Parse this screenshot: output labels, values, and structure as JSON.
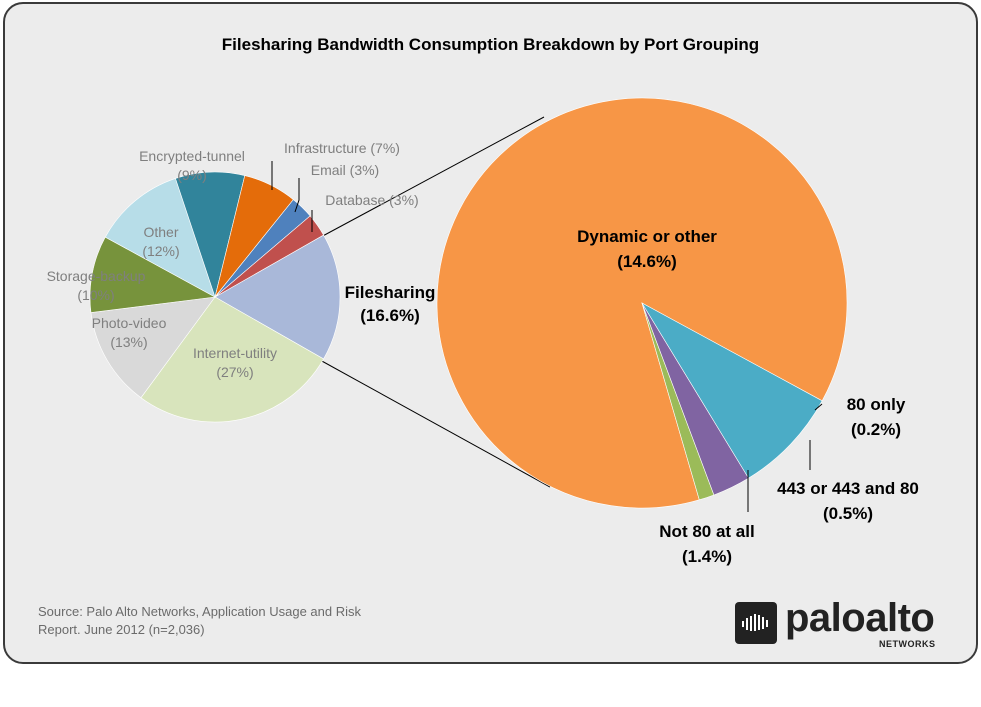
{
  "title": "Filesharing Bandwidth Consumption Breakdown by Port Grouping",
  "source": "Source: Palo Alto Networks, Application Usage and Risk Report. June 2012 (n=2,036)",
  "logo": {
    "name": "paloalto",
    "sub": "NETWORKS"
  },
  "colors": {
    "frame_bg": "#ececec",
    "frame_border": "#3a3a3a"
  },
  "chart_data": [
    {
      "type": "pie",
      "title": "",
      "slices": [
        {
          "label": "Filesharing",
          "pct_text": "(16.6%)",
          "value": 16.6,
          "color": "#a9b8d9"
        },
        {
          "label": "Internet-utility",
          "pct_text": "(27%)",
          "value": 27,
          "color": "#d8e4bc"
        },
        {
          "label": "Photo-video",
          "pct_text": "(13%)",
          "value": 13,
          "color": "#d9d9d9"
        },
        {
          "label": "Storage-backup",
          "pct_text": "(10%)",
          "value": 10,
          "color": "#77933c"
        },
        {
          "label": "Other",
          "pct_text": "(12%)",
          "value": 12,
          "color": "#b7dde8"
        },
        {
          "label": "Encrypted-tunnel",
          "pct_text": "(9%)",
          "value": 9,
          "color": "#31849b"
        },
        {
          "label": "Infrastructure",
          "pct_text": "(7%)",
          "value": 7,
          "color": "#e46c0a"
        },
        {
          "label": "Email",
          "pct_text": "(3%)",
          "value": 3,
          "color": "#4f81bd"
        },
        {
          "label": "Database",
          "pct_text": "(3%)",
          "value": 3,
          "color": "#c0504d"
        }
      ]
    },
    {
      "type": "pie",
      "title": "",
      "slices": [
        {
          "label": "Dynamic or other",
          "pct_text": "(14.6%)",
          "value": 14.6,
          "color": "#f79646"
        },
        {
          "label": "80 only",
          "pct_text": "(0.2%)",
          "value": 0.2,
          "color": "#9bbb59"
        },
        {
          "label": "443 or 443 and 80",
          "pct_text": "(0.5%)",
          "value": 0.5,
          "color": "#8064a2"
        },
        {
          "label": "Not 80 at all",
          "pct_text": "(1.4%)",
          "value": 1.4,
          "color": "#4bacc6"
        }
      ]
    }
  ]
}
